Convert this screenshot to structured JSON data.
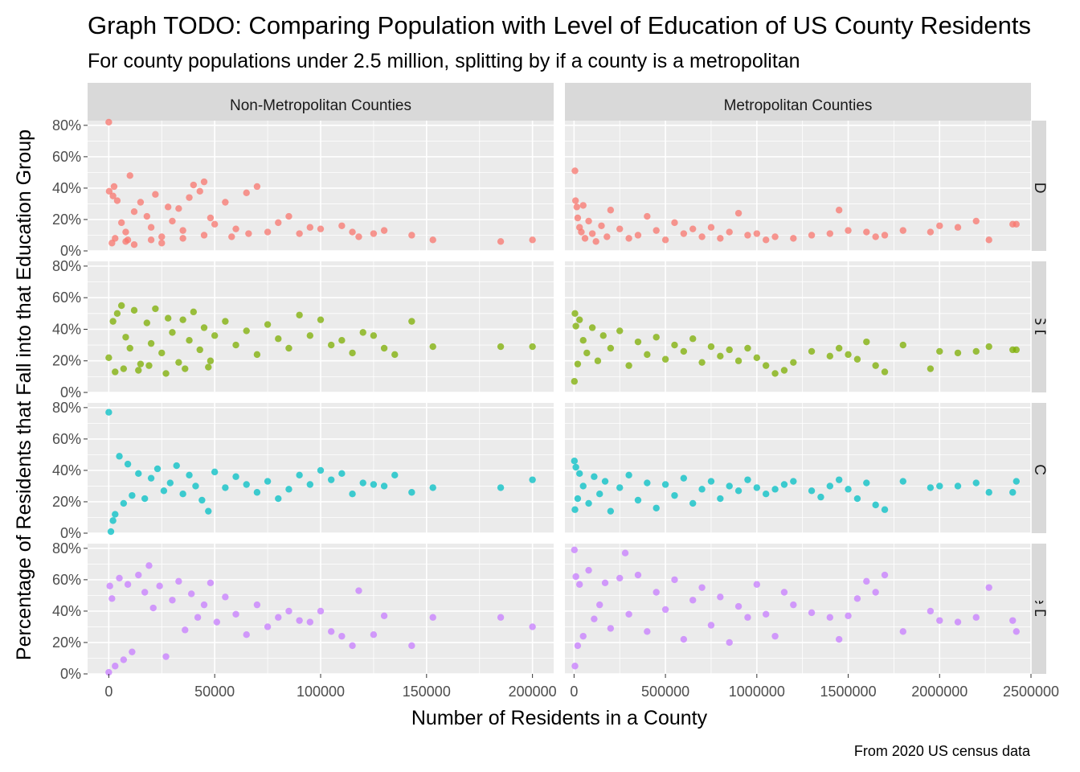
{
  "chart_data": {
    "type": "scatter",
    "title": "Graph TODO: Comparing Population with Level of Education of US County Residents",
    "subtitle": "For county populations under 2.5 million, splitting by if a county is a metropolitan",
    "caption": "From 2020 US census data",
    "xlabel": "Number of Residents in a County",
    "ylabel": "Percentage of Residents that Fall into that Education Group",
    "y_ticks": [
      "0%",
      "20%",
      "40%",
      "60%",
      "80%"
    ],
    "ylim": [
      0,
      0.83
    ],
    "grid": true,
    "columns": [
      {
        "label": "Non-Metropolitan Counties",
        "xlim": [
          -10000,
          210000
        ],
        "x_ticks": [
          0,
          50000,
          100000,
          150000,
          200000
        ],
        "x_tick_labels": [
          "0",
          "50000",
          "100000",
          "150000",
          "200000"
        ]
      },
      {
        "label": "Metropolitan Counties",
        "xlim": [
          -50000,
          2500000
        ],
        "x_ticks": [
          0,
          500000,
          1000000,
          1500000,
          2000000,
          2500000
        ],
        "x_tick_labels": [
          "0",
          "500000",
          "1000000",
          "1500000",
          "2000000",
          "2500000"
        ]
      }
    ],
    "rows": [
      {
        "label": "No HS Diploma",
        "color": "#F8766D"
      },
      {
        "label": "Only HS Diploma",
        "color": "#7CAE00"
      },
      {
        "label": "Some College",
        "color": "#00BFC4"
      },
      {
        "label": "College Diploma",
        "color": "#C77CFF"
      }
    ],
    "series": [
      {
        "row": 0,
        "col": 0,
        "x": [
          0,
          200,
          2500,
          4000,
          6000,
          8000,
          10000,
          12000,
          15000,
          18000,
          20000,
          22000,
          25000,
          28000,
          30000,
          33000,
          35000,
          38000,
          40000,
          43000,
          45000,
          48000,
          50000,
          55000,
          60000,
          65000,
          70000,
          75000,
          80000,
          85000,
          90000,
          95000,
          100000,
          110000,
          115000,
          118000,
          125000,
          130000,
          143000,
          153000,
          185000,
          200000,
          1500,
          3000,
          8000,
          12000,
          20000,
          25000,
          35000,
          45000,
          58000,
          66000,
          2000,
          9000
        ],
        "y": [
          0.82,
          0.38,
          0.41,
          0.32,
          0.18,
          0.12,
          0.48,
          0.25,
          0.31,
          0.22,
          0.15,
          0.36,
          0.09,
          0.28,
          0.19,
          0.27,
          0.13,
          0.34,
          0.42,
          0.38,
          0.44,
          0.21,
          0.17,
          0.31,
          0.14,
          0.37,
          0.41,
          0.12,
          0.18,
          0.22,
          0.11,
          0.15,
          0.14,
          0.16,
          0.12,
          0.09,
          0.11,
          0.13,
          0.1,
          0.07,
          0.06,
          0.07,
          0.05,
          0.08,
          0.06,
          0.04,
          0.07,
          0.05,
          0.08,
          0.1,
          0.09,
          0.11,
          0.35,
          0.07
        ]
      },
      {
        "row": 0,
        "col": 1,
        "x": [
          5000,
          8000,
          15000,
          20000,
          30000,
          40000,
          50000,
          60000,
          80000,
          100000,
          120000,
          150000,
          180000,
          200000,
          250000,
          300000,
          350000,
          400000,
          450000,
          500000,
          550000,
          600000,
          650000,
          700000,
          750000,
          800000,
          850000,
          900000,
          950000,
          1000000,
          1050000,
          1100000,
          1200000,
          1300000,
          1400000,
          1450000,
          1500000,
          1600000,
          1650000,
          1700000,
          1800000,
          1950000,
          2000000,
          2100000,
          2200000,
          2270000,
          2400000,
          2420000
        ],
        "y": [
          0.51,
          0.32,
          0.28,
          0.21,
          0.15,
          0.12,
          0.29,
          0.08,
          0.19,
          0.11,
          0.06,
          0.16,
          0.09,
          0.26,
          0.14,
          0.08,
          0.1,
          0.22,
          0.13,
          0.07,
          0.18,
          0.11,
          0.14,
          0.09,
          0.15,
          0.08,
          0.12,
          0.24,
          0.1,
          0.11,
          0.07,
          0.09,
          0.08,
          0.1,
          0.11,
          0.26,
          0.13,
          0.12,
          0.09,
          0.1,
          0.13,
          0.12,
          0.16,
          0.15,
          0.19,
          0.07,
          0.17,
          0.17
        ]
      },
      {
        "row": 1,
        "col": 0,
        "x": [
          0,
          2000,
          4000,
          6000,
          8000,
          10000,
          12000,
          15000,
          18000,
          20000,
          22000,
          25000,
          28000,
          30000,
          33000,
          35000,
          38000,
          40000,
          43000,
          45000,
          48000,
          50000,
          55000,
          60000,
          65000,
          70000,
          75000,
          80000,
          85000,
          90000,
          95000,
          100000,
          105000,
          110000,
          115000,
          120000,
          125000,
          130000,
          135000,
          143000,
          153000,
          185000,
          200000,
          3000,
          7000,
          14000,
          19000,
          27000,
          36000,
          47000
        ],
        "y": [
          0.22,
          0.45,
          0.5,
          0.55,
          0.35,
          0.28,
          0.52,
          0.18,
          0.44,
          0.31,
          0.53,
          0.25,
          0.47,
          0.38,
          0.19,
          0.46,
          0.33,
          0.51,
          0.27,
          0.41,
          0.2,
          0.36,
          0.45,
          0.3,
          0.39,
          0.24,
          0.43,
          0.34,
          0.28,
          0.49,
          0.36,
          0.46,
          0.3,
          0.33,
          0.25,
          0.38,
          0.36,
          0.28,
          0.24,
          0.45,
          0.29,
          0.29,
          0.29,
          0.13,
          0.15,
          0.14,
          0.17,
          0.12,
          0.15,
          0.16
        ]
      },
      {
        "row": 1,
        "col": 1,
        "x": [
          2000,
          5000,
          10000,
          20000,
          30000,
          50000,
          70000,
          100000,
          130000,
          160000,
          200000,
          250000,
          300000,
          350000,
          400000,
          450000,
          500000,
          550000,
          600000,
          650000,
          700000,
          750000,
          800000,
          850000,
          900000,
          950000,
          1000000,
          1050000,
          1100000,
          1150000,
          1200000,
          1300000,
          1400000,
          1450000,
          1500000,
          1550000,
          1600000,
          1650000,
          1700000,
          1800000,
          1950000,
          2000000,
          2100000,
          2200000,
          2270000,
          2400000,
          2420000
        ],
        "y": [
          0.07,
          0.5,
          0.42,
          0.18,
          0.46,
          0.33,
          0.25,
          0.41,
          0.2,
          0.36,
          0.28,
          0.39,
          0.17,
          0.32,
          0.24,
          0.35,
          0.21,
          0.3,
          0.26,
          0.34,
          0.19,
          0.29,
          0.23,
          0.27,
          0.2,
          0.28,
          0.22,
          0.17,
          0.12,
          0.14,
          0.19,
          0.26,
          0.23,
          0.28,
          0.24,
          0.21,
          0.32,
          0.17,
          0.13,
          0.3,
          0.15,
          0.26,
          0.25,
          0.26,
          0.29,
          0.27,
          0.27
        ]
      },
      {
        "row": 2,
        "col": 0,
        "x": [
          0,
          1000,
          2000,
          3000,
          5000,
          7000,
          9000,
          11000,
          14000,
          17000,
          20000,
          23000,
          26000,
          29000,
          32000,
          35000,
          38000,
          41000,
          44000,
          47000,
          50000,
          55000,
          60000,
          65000,
          70000,
          75000,
          80000,
          85000,
          90000,
          95000,
          100000,
          105000,
          110000,
          115000,
          120000,
          125000,
          130000,
          135000,
          143000,
          153000,
          185000,
          200000
        ],
        "y": [
          0.77,
          0.01,
          0.08,
          0.12,
          0.49,
          0.19,
          0.44,
          0.24,
          0.38,
          0.22,
          0.35,
          0.41,
          0.27,
          0.32,
          0.43,
          0.25,
          0.37,
          0.3,
          0.21,
          0.14,
          0.39,
          0.29,
          0.36,
          0.31,
          0.26,
          0.33,
          0.22,
          0.28,
          0.37,
          0.31,
          0.4,
          0.34,
          0.38,
          0.25,
          0.32,
          0.31,
          0.3,
          0.37,
          0.26,
          0.29,
          0.29,
          0.34
        ]
      },
      {
        "row": 2,
        "col": 1,
        "x": [
          2000,
          5000,
          10000,
          20000,
          30000,
          50000,
          80000,
          110000,
          140000,
          170000,
          200000,
          250000,
          300000,
          350000,
          400000,
          450000,
          500000,
          550000,
          600000,
          650000,
          700000,
          750000,
          800000,
          850000,
          900000,
          950000,
          1000000,
          1050000,
          1100000,
          1150000,
          1200000,
          1300000,
          1350000,
          1400000,
          1450000,
          1500000,
          1550000,
          1600000,
          1650000,
          1700000,
          1800000,
          1950000,
          2000000,
          2100000,
          2200000,
          2270000,
          2400000,
          2420000
        ],
        "y": [
          0.46,
          0.15,
          0.42,
          0.22,
          0.38,
          0.3,
          0.19,
          0.36,
          0.25,
          0.33,
          0.14,
          0.29,
          0.37,
          0.21,
          0.32,
          0.16,
          0.31,
          0.24,
          0.35,
          0.19,
          0.28,
          0.33,
          0.22,
          0.3,
          0.27,
          0.34,
          0.29,
          0.25,
          0.28,
          0.31,
          0.33,
          0.27,
          0.23,
          0.3,
          0.34,
          0.28,
          0.22,
          0.32,
          0.18,
          0.15,
          0.33,
          0.29,
          0.3,
          0.3,
          0.32,
          0.26,
          0.26,
          0.33
        ]
      },
      {
        "row": 3,
        "col": 0,
        "x": [
          0,
          500,
          1500,
          3000,
          5000,
          7000,
          9000,
          11000,
          14000,
          17000,
          19000,
          21000,
          24000,
          27000,
          30000,
          33000,
          36000,
          39000,
          42000,
          45000,
          48000,
          51000,
          55000,
          60000,
          65000,
          70000,
          75000,
          80000,
          85000,
          90000,
          95000,
          100000,
          105000,
          110000,
          115000,
          118000,
          125000,
          130000,
          143000,
          153000,
          185000,
          200000
        ],
        "y": [
          0.01,
          0.56,
          0.48,
          0.05,
          0.61,
          0.09,
          0.57,
          0.14,
          0.63,
          0.52,
          0.69,
          0.42,
          0.56,
          0.11,
          0.47,
          0.59,
          0.28,
          0.51,
          0.36,
          0.44,
          0.58,
          0.33,
          0.49,
          0.38,
          0.25,
          0.44,
          0.3,
          0.36,
          0.4,
          0.34,
          0.33,
          0.4,
          0.27,
          0.24,
          0.18,
          0.53,
          0.25,
          0.37,
          0.18,
          0.36,
          0.36,
          0.3
        ]
      },
      {
        "row": 3,
        "col": 1,
        "x": [
          2000,
          5000,
          10000,
          20000,
          30000,
          50000,
          80000,
          110000,
          140000,
          170000,
          200000,
          250000,
          280000,
          300000,
          350000,
          400000,
          450000,
          500000,
          550000,
          600000,
          650000,
          700000,
          750000,
          800000,
          850000,
          900000,
          950000,
          1000000,
          1050000,
          1100000,
          1150000,
          1200000,
          1300000,
          1400000,
          1450000,
          1500000,
          1550000,
          1600000,
          1650000,
          1700000,
          1800000,
          1950000,
          2000000,
          2100000,
          2200000,
          2270000,
          2400000,
          2420000
        ],
        "y": [
          0.79,
          0.05,
          0.62,
          0.18,
          0.57,
          0.24,
          0.66,
          0.35,
          0.44,
          0.58,
          0.29,
          0.61,
          0.77,
          0.38,
          0.63,
          0.27,
          0.52,
          0.41,
          0.6,
          0.22,
          0.47,
          0.55,
          0.31,
          0.49,
          0.2,
          0.43,
          0.36,
          0.57,
          0.38,
          0.24,
          0.52,
          0.44,
          0.39,
          0.36,
          0.22,
          0.37,
          0.48,
          0.59,
          0.52,
          0.63,
          0.27,
          0.4,
          0.34,
          0.33,
          0.36,
          0.55,
          0.34,
          0.27
        ]
      }
    ]
  }
}
